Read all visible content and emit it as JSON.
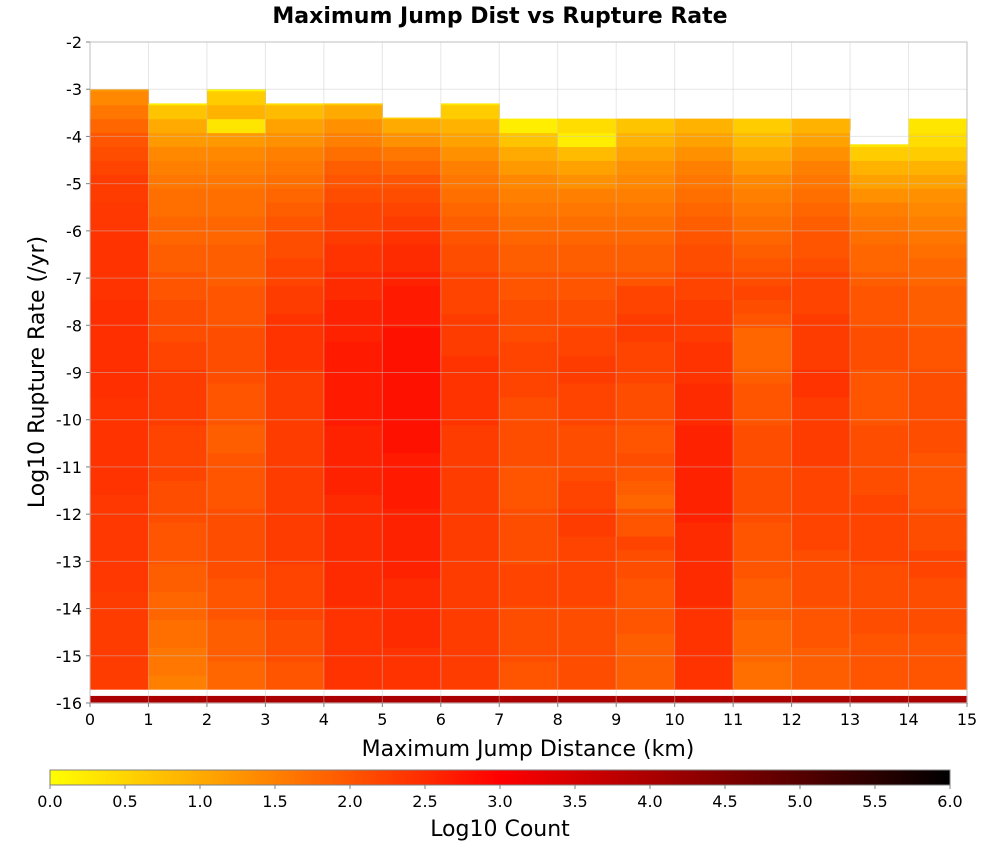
{
  "chart_data": {
    "type": "heatmap",
    "title": "Maximum Jump Dist vs Rupture Rate",
    "xlabel": "Maximum Jump Distance (km)",
    "ylabel": "Log10 Rupture Rate (/yr)",
    "xlim": [
      0,
      15
    ],
    "ylim": [
      -16,
      -2
    ],
    "x_ticks": [
      0,
      1,
      2,
      3,
      4,
      5,
      6,
      7,
      8,
      9,
      10,
      11,
      12,
      13,
      14,
      15
    ],
    "y_ticks": [
      -2,
      -3,
      -4,
      -5,
      -6,
      -7,
      -8,
      -9,
      -10,
      -11,
      -12,
      -13,
      -14,
      -15,
      -16
    ],
    "grid": true,
    "colorbar": {
      "label": "Log10 Count",
      "range": [
        0.0,
        6.0
      ],
      "ticks": [
        "0.0",
        "0.5",
        "1.0",
        "1.5",
        "2.0",
        "2.5",
        "3.0",
        "3.5",
        "4.0",
        "4.5",
        "5.0",
        "5.5",
        "6.0"
      ],
      "colors": [
        "#ffff00",
        "#ff8000",
        "#ff0000",
        "#800000",
        "#000000"
      ],
      "placement": "bottom"
    },
    "x_bin_width": 1,
    "y_bin_height": 0.2947,
    "y_bin_start": -16,
    "columns": [
      {
        "x": 0,
        "values": [
          4.0,
          2.3,
          2.3,
          2.3,
          2.3,
          2.3,
          2.3,
          2.3,
          2.35,
          2.35,
          2.35,
          2.35,
          2.35,
          2.35,
          2.35,
          2.4,
          2.4,
          2.4,
          2.4,
          2.4,
          2.4,
          2.4,
          2.45,
          2.45,
          2.45,
          2.45,
          2.45,
          2.45,
          2.45,
          2.4,
          2.4,
          2.4,
          2.4,
          2.4,
          2.35,
          2.35,
          2.3,
          2.3,
          2.2,
          2.1,
          2.0,
          1.8,
          1.6,
          1.4,
          1.2
        ],
        "top": -3.0
      },
      {
        "x": 1,
        "values": [
          4.0,
          1.5,
          1.6,
          1.6,
          1.7,
          1.7,
          1.8,
          1.8,
          1.9,
          1.9,
          2.0,
          2.0,
          2.0,
          2.1,
          2.1,
          2.1,
          2.2,
          2.2,
          2.2,
          2.2,
          2.3,
          2.3,
          2.3,
          2.3,
          2.2,
          2.2,
          2.1,
          2.1,
          2.1,
          2.0,
          2.0,
          1.9,
          1.9,
          1.8,
          1.8,
          1.7,
          1.7,
          1.6,
          1.5,
          1.4,
          1.2,
          1.0,
          0.7,
          0.2
        ],
        "top": -3.3
      },
      {
        "x": 2,
        "values": [
          4.0,
          1.8,
          1.8,
          1.9,
          1.9,
          1.9,
          2.0,
          2.0,
          2.0,
          2.1,
          2.1,
          2.1,
          2.1,
          2.1,
          2.0,
          2.0,
          2.0,
          2.0,
          1.9,
          1.9,
          2.0,
          2.0,
          2.0,
          2.1,
          2.1,
          2.1,
          2.1,
          2.0,
          2.0,
          2.0,
          1.9,
          1.9,
          1.9,
          1.8,
          1.8,
          1.7,
          1.7,
          1.6,
          1.5,
          1.4,
          1.2,
          0.3,
          0.9,
          0.6,
          0.1
        ],
        "top": -3.0
      },
      {
        "x": 3,
        "values": [
          4.0,
          2.0,
          2.0,
          2.1,
          2.1,
          2.1,
          2.2,
          2.2,
          2.2,
          2.2,
          2.3,
          2.3,
          2.3,
          2.3,
          2.3,
          2.3,
          2.3,
          2.3,
          2.3,
          2.3,
          2.3,
          2.3,
          2.3,
          2.3,
          2.4,
          2.4,
          2.4,
          2.4,
          2.3,
          2.3,
          2.2,
          2.2,
          2.1,
          2.1,
          2.0,
          1.9,
          1.8,
          1.7,
          1.6,
          1.5,
          1.3,
          1.1,
          0.8,
          0.4
        ],
        "top": -3.3
      },
      {
        "x": 4,
        "values": [
          4.0,
          2.4,
          2.4,
          2.4,
          2.4,
          2.4,
          2.4,
          2.5,
          2.5,
          2.5,
          2.5,
          2.5,
          2.5,
          2.5,
          2.5,
          2.6,
          2.6,
          2.6,
          2.6,
          2.6,
          2.7,
          2.7,
          2.7,
          2.7,
          2.7,
          2.7,
          2.6,
          2.6,
          2.6,
          2.5,
          2.5,
          2.4,
          2.4,
          2.3,
          2.2,
          2.2,
          2.1,
          2.0,
          1.9,
          1.7,
          1.5,
          1.3,
          1.0,
          0.6
        ],
        "top": -3.3
      },
      {
        "x": 5,
        "values": [
          4.0,
          2.4,
          2.4,
          2.4,
          2.5,
          2.5,
          2.5,
          2.5,
          2.5,
          2.6,
          2.6,
          2.6,
          2.6,
          2.6,
          2.7,
          2.7,
          2.7,
          2.7,
          2.8,
          2.8,
          2.8,
          2.8,
          2.8,
          2.8,
          2.8,
          2.8,
          2.8,
          2.7,
          2.7,
          2.7,
          2.6,
          2.5,
          2.5,
          2.4,
          2.3,
          2.2,
          2.1,
          2.0,
          1.8,
          1.6,
          1.3,
          1.0,
          0.6
        ],
        "top": -3.6
      },
      {
        "x": 6,
        "values": [
          4.0,
          2.3,
          2.3,
          2.3,
          2.3,
          2.3,
          2.3,
          2.3,
          2.3,
          2.3,
          2.3,
          2.3,
          2.3,
          2.3,
          2.3,
          2.3,
          2.3,
          2.3,
          2.3,
          2.3,
          2.4,
          2.4,
          2.4,
          2.4,
          2.4,
          2.3,
          2.3,
          2.3,
          2.2,
          2.2,
          2.2,
          2.1,
          2.1,
          2.0,
          1.9,
          1.8,
          1.7,
          1.6,
          1.5,
          1.3,
          1.1,
          0.9,
          0.6,
          0.3
        ],
        "top": -3.3
      },
      {
        "x": 7,
        "values": [
          4.0,
          2.0,
          2.0,
          2.1,
          2.1,
          2.1,
          2.1,
          2.2,
          2.2,
          2.2,
          2.1,
          2.1,
          2.1,
          2.1,
          2.0,
          2.0,
          2.0,
          2.1,
          2.1,
          2.1,
          2.1,
          2.1,
          2.2,
          2.2,
          2.2,
          2.2,
          2.1,
          2.1,
          2.1,
          2.0,
          2.0,
          1.9,
          1.9,
          1.8,
          1.7,
          1.6,
          1.5,
          1.4,
          1.2,
          1.0,
          0.7,
          0.2
        ],
        "top": -3.6
      },
      {
        "x": 8,
        "values": [
          4.0,
          2.1,
          2.1,
          2.1,
          2.1,
          2.1,
          2.1,
          2.2,
          2.2,
          2.2,
          2.2,
          2.2,
          2.3,
          2.3,
          2.2,
          2.2,
          2.1,
          2.1,
          2.1,
          2.1,
          2.2,
          2.2,
          2.2,
          2.3,
          2.3,
          2.2,
          2.2,
          2.1,
          2.1,
          2.0,
          2.0,
          1.9,
          1.9,
          1.8,
          1.7,
          1.6,
          1.5,
          1.3,
          1.1,
          0.8,
          0.2,
          0.4
        ],
        "top": -3.3
      },
      {
        "x": 9,
        "values": [
          4.0,
          1.9,
          1.9,
          1.9,
          1.9,
          2.0,
          2.0,
          2.0,
          2.0,
          2.1,
          2.1,
          2.2,
          2.0,
          2.0,
          1.8,
          1.9,
          2.0,
          2.1,
          2.0,
          2.0,
          2.1,
          2.1,
          2.1,
          2.2,
          2.2,
          2.2,
          2.3,
          2.3,
          2.2,
          2.2,
          2.0,
          1.9,
          1.9,
          1.8,
          1.7,
          1.6,
          1.5,
          1.4,
          1.3,
          1.1,
          0.9,
          0.7
        ],
        "top": -3.6
      },
      {
        "x": 10,
        "values": [
          4.0,
          2.4,
          2.4,
          2.4,
          2.4,
          2.4,
          2.4,
          2.5,
          2.5,
          2.5,
          2.5,
          2.5,
          2.5,
          2.6,
          2.6,
          2.6,
          2.6,
          2.6,
          2.6,
          2.6,
          2.5,
          2.5,
          2.5,
          2.4,
          2.4,
          2.4,
          2.3,
          2.3,
          2.3,
          2.2,
          2.2,
          2.1,
          2.1,
          2.0,
          1.9,
          1.8,
          1.7,
          1.6,
          1.5,
          1.3,
          1.1,
          0.9
        ],
        "top": -3.6
      },
      {
        "x": 11,
        "values": [
          4.0,
          1.7,
          1.7,
          1.8,
          1.8,
          1.8,
          1.9,
          1.9,
          1.9,
          2.0,
          2.0,
          2.0,
          2.0,
          2.1,
          2.1,
          2.1,
          2.1,
          2.1,
          2.1,
          2.1,
          2.0,
          2.0,
          2.0,
          1.9,
          1.8,
          1.8,
          1.8,
          2.0,
          2.1,
          2.2,
          2.1,
          2.0,
          1.9,
          1.8,
          1.7,
          1.6,
          1.5,
          1.4,
          1.2,
          1.0,
          0.8,
          0.6
        ],
        "top": -3.6
      },
      {
        "x": 12,
        "values": [
          4.0,
          1.9,
          1.9,
          1.9,
          2.0,
          2.0,
          2.0,
          2.1,
          2.1,
          2.1,
          2.1,
          2.2,
          2.2,
          2.2,
          2.2,
          2.2,
          2.2,
          2.3,
          2.3,
          2.3,
          2.3,
          2.3,
          2.4,
          2.4,
          2.3,
          2.3,
          2.3,
          2.3,
          2.2,
          2.2,
          2.2,
          2.1,
          2.0,
          2.0,
          1.9,
          1.8,
          1.7,
          1.6,
          1.5,
          1.3,
          1.1,
          0.9
        ],
        "top": -3.6
      },
      {
        "x": 13,
        "values": [
          4.0,
          2.0,
          2.0,
          2.0,
          2.0,
          2.1,
          2.1,
          2.1,
          2.1,
          2.1,
          2.2,
          2.2,
          2.2,
          2.2,
          2.2,
          2.1,
          2.1,
          2.1,
          2.1,
          2.1,
          2.0,
          2.0,
          2.0,
          2.0,
          2.1,
          2.1,
          2.1,
          2.0,
          2.0,
          2.0,
          1.9,
          1.8,
          1.8,
          1.7,
          1.6,
          1.5,
          1.3,
          1.1,
          0.9,
          0.6,
          0.3
        ],
        "top": -3.6
      },
      {
        "x": 14,
        "values": [
          4.0,
          2.0,
          2.0,
          2.0,
          2.0,
          2.1,
          2.1,
          2.1,
          2.1,
          2.2,
          2.2,
          2.1,
          2.1,
          2.1,
          2.0,
          2.0,
          2.0,
          2.0,
          2.1,
          2.1,
          2.1,
          2.1,
          2.1,
          2.1,
          2.0,
          2.0,
          2.0,
          1.9,
          1.9,
          1.9,
          1.8,
          1.8,
          1.7,
          1.6,
          1.5,
          1.4,
          1.3,
          1.1,
          0.9,
          0.6,
          0.4,
          0.3
        ],
        "top": -3.6
      }
    ],
    "empty_cells": [
      {
        "x": 13,
        "y_from": -4.167,
        "y_to": -3.874
      }
    ]
  }
}
